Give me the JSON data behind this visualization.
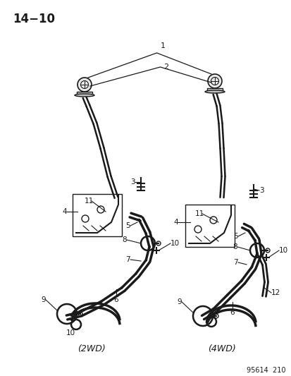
{
  "title": "14−10",
  "page_label": "95614  210",
  "background_color": "#ffffff",
  "line_color": "#1a1a1a",
  "label_2wd": "(2WD)",
  "label_4wd": "(4WD)",
  "figsize": [
    4.14,
    5.33
  ],
  "dpi": 100
}
